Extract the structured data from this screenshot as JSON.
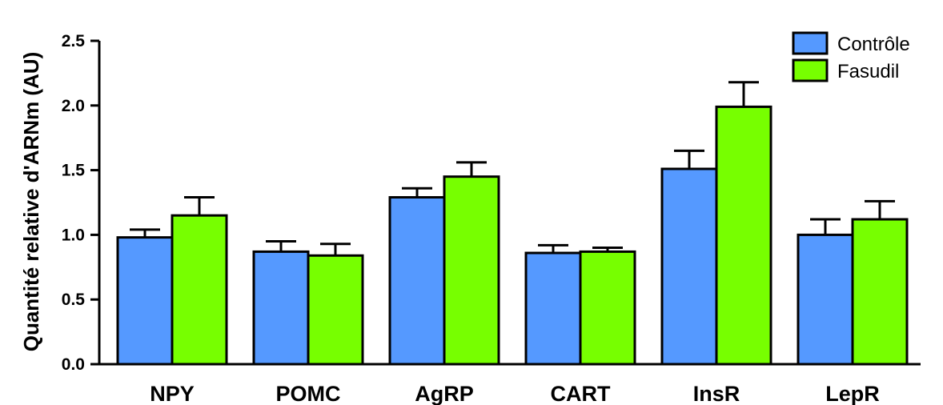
{
  "chart_data": {
    "type": "bar",
    "title": "",
    "xlabel": "",
    "ylabel": "Quantité relative d'ARNm (AU)",
    "ylim": [
      0,
      2.5
    ],
    "yticks": [
      "0.0",
      "0.5",
      "1.0",
      "1.5",
      "2.0",
      "2.5"
    ],
    "categories": [
      "NPY",
      "POMC",
      "AgRP",
      "CART",
      "InsR",
      "LepR"
    ],
    "series": [
      {
        "name": "Contrôle",
        "color": "#5599ff",
        "values": [
          0.98,
          0.87,
          1.29,
          0.86,
          1.51,
          1.0
        ],
        "errors": [
          0.06,
          0.08,
          0.07,
          0.06,
          0.14,
          0.12
        ]
      },
      {
        "name": "Fasudil",
        "color": "#77ff00",
        "values": [
          1.15,
          0.84,
          1.45,
          0.87,
          1.99,
          1.12
        ],
        "errors": [
          0.14,
          0.09,
          0.11,
          0.03,
          0.19,
          0.14
        ]
      }
    ],
    "legend_position": "top-right",
    "grid": false
  }
}
